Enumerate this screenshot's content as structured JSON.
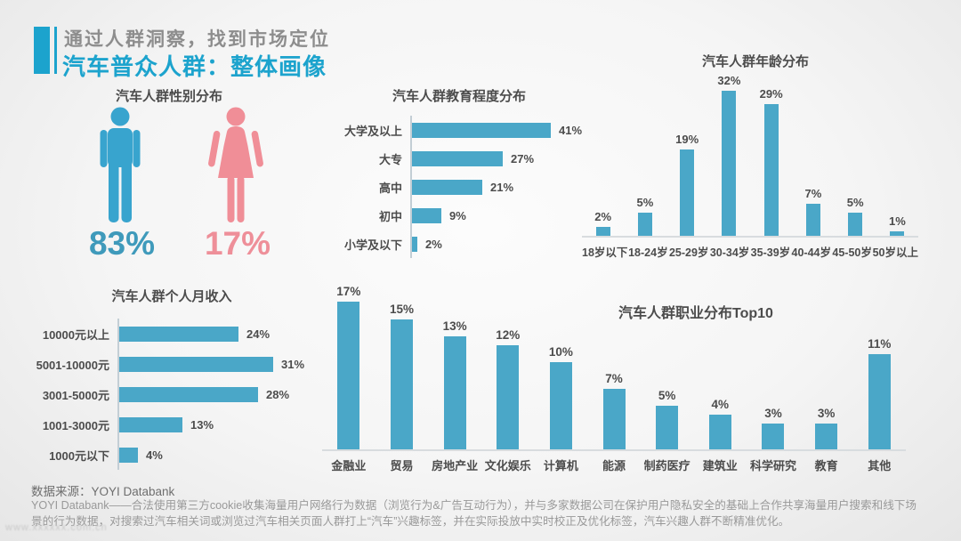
{
  "header": {
    "kicker": "通过人群洞察，找到市场定位",
    "title": "汽车普众人群：整体画像"
  },
  "colors": {
    "accent_blue": "#1ca3cd",
    "bar_blue": "#4aa7c8",
    "male_blue": "#38a4ce",
    "female_pink": "#f08e97",
    "male_value_blue": "#3f9abb",
    "female_value_pink": "#ee8f99",
    "kicker_gray": "#8d8d8d",
    "label_dark": "#4c4c4c",
    "axis_gray": "#c3ced5",
    "baseline_gray": "#d8dcdf",
    "source_gray": "#6e6e6e",
    "note_gray": "#999999",
    "watermark_gray": "#c9c9c9"
  },
  "chart_data": [
    {
      "type": "pictogram",
      "title": "汽车人群性别分布",
      "categories": [
        "male",
        "female"
      ],
      "values": [
        83,
        17
      ],
      "unit": "%",
      "legend_position": "none"
    },
    {
      "type": "bar",
      "orientation": "horizontal",
      "title": "汽车人群教育程度分布",
      "categories": [
        "大学及以上",
        "大专",
        "高中",
        "初中",
        "小学及以下"
      ],
      "values": [
        41,
        27,
        21,
        9,
        2
      ],
      "unit": "%",
      "xlabel": "",
      "ylabel": "",
      "xlim": [
        0,
        45
      ],
      "grid": false,
      "data_labels": true
    },
    {
      "type": "bar",
      "orientation": "vertical",
      "title": "汽车人群年龄分布",
      "categories": [
        "18岁以下",
        "18-24岁",
        "25-29岁",
        "30-34岁",
        "35-39岁",
        "40-44岁",
        "45-50岁",
        "50岁以上"
      ],
      "values": [
        2,
        5,
        19,
        32,
        29,
        7,
        5,
        1
      ],
      "unit": "%",
      "xlabel": "",
      "ylabel": "",
      "ylim": [
        0,
        35
      ],
      "grid": false,
      "data_labels": true
    },
    {
      "type": "bar",
      "orientation": "horizontal",
      "title": "汽车人群个人月收入",
      "categories": [
        "10000元以上",
        "5001-10000元",
        "3001-5000元",
        "1001-3000元",
        "1000元以下"
      ],
      "values": [
        24,
        31,
        28,
        13,
        4
      ],
      "unit": "%",
      "xlabel": "",
      "ylabel": "",
      "xlim": [
        0,
        35
      ],
      "grid": false,
      "data_labels": true
    },
    {
      "type": "bar",
      "orientation": "vertical",
      "title": "汽车人群职业分布Top10",
      "categories": [
        "金融业",
        "贸易",
        "房地产业",
        "文化娱乐",
        "计算机",
        "能源",
        "制药医疗",
        "建筑业",
        "科学研究",
        "教育",
        "其他"
      ],
      "values": [
        17,
        15,
        13,
        12,
        10,
        7,
        5,
        4,
        3,
        3,
        11
      ],
      "unit": "%",
      "xlabel": "",
      "ylabel": "",
      "ylim": [
        0,
        20
      ],
      "grid": false,
      "data_labels": true
    }
  ],
  "source": {
    "label": "数据来源：YOYI Databank",
    "note_line1": "YOYI Databank——合法使用第三方cookie收集海量用户网络行为数据（浏览行为&广告互动行为），并与多家数据公司在保护用户隐私安全的基础上合作共享海量用户搜索和线下场",
    "note_line2": "景的行为数据，对搜索过汽车相关词或浏览过汽车相关页面人群打上“汽车”兴趣标签，并在实际投放中实时校正及优化标签，汽车兴趣人群不断精准优化。"
  },
  "watermark": "www.xxxxxx.com.cn"
}
